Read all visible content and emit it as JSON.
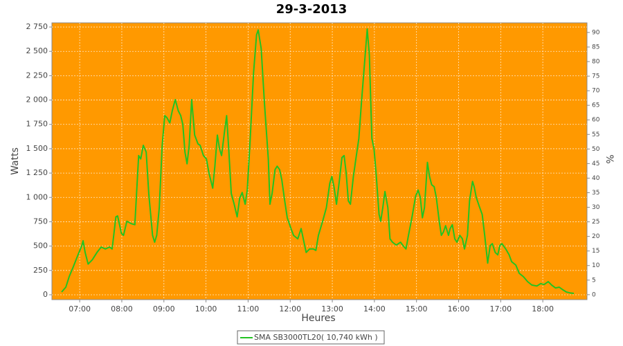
{
  "chart_data": {
    "type": "line",
    "title": "29-3-2013",
    "xlabel": "Heures",
    "ylabel": "Watts",
    "y2label": "%",
    "background": "#ff9900",
    "grid": true,
    "legend": "bottom",
    "x": [
      6.57,
      6.67,
      6.75,
      6.85,
      6.95,
      7.05,
      7.08,
      7.13,
      7.2,
      7.3,
      7.41,
      7.51,
      7.61,
      7.71,
      7.77,
      7.86,
      7.9,
      7.99,
      8.04,
      8.12,
      8.23,
      8.31,
      8.4,
      8.45,
      8.51,
      8.58,
      8.64,
      8.73,
      8.78,
      8.83,
      8.89,
      8.96,
      9.02,
      9.07,
      9.14,
      9.2,
      9.27,
      9.34,
      9.4,
      9.45,
      9.5,
      9.55,
      9.6,
      9.66,
      9.73,
      9.81,
      9.86,
      9.94,
      10.01,
      10.07,
      10.16,
      10.21,
      10.27,
      10.32,
      10.37,
      10.44,
      10.49,
      10.54,
      10.6,
      10.67,
      10.74,
      10.8,
      10.86,
      10.93,
      10.98,
      11.05,
      11.13,
      11.2,
      11.24,
      11.31,
      11.39,
      11.48,
      11.52,
      11.57,
      11.64,
      11.69,
      11.75,
      11.8,
      11.87,
      11.93,
      12.02,
      12.08,
      12.18,
      12.26,
      12.31,
      12.38,
      12.46,
      12.55,
      12.61,
      12.67,
      12.77,
      12.86,
      12.94,
      12.99,
      13.04,
      13.1,
      13.17,
      13.23,
      13.28,
      13.33,
      13.38,
      13.43,
      13.5,
      13.56,
      13.63,
      13.69,
      13.78,
      13.83,
      13.88,
      13.94,
      13.99,
      14.04,
      14.11,
      14.15,
      14.2,
      14.25,
      14.32,
      14.37,
      14.43,
      14.52,
      14.62,
      14.68,
      14.75,
      14.81,
      14.89,
      14.98,
      15.04,
      15.09,
      15.14,
      15.19,
      15.26,
      15.31,
      15.36,
      15.42,
      15.47,
      15.54,
      15.59,
      15.64,
      15.69,
      15.76,
      15.8,
      15.85,
      15.91,
      15.96,
      16.03,
      16.09,
      16.14,
      16.21,
      16.26,
      16.33,
      16.37,
      16.42,
      16.49,
      16.56,
      16.62,
      16.69,
      16.75,
      16.8,
      16.87,
      16.93,
      16.98,
      17.03,
      17.12,
      17.2,
      17.26,
      17.36,
      17.44,
      17.54,
      17.64,
      17.74,
      17.86,
      17.95,
      18.03,
      18.13,
      18.21,
      18.3,
      18.39,
      18.48,
      18.56,
      18.64,
      18.74
    ],
    "series": [
      {
        "name": "SMA SB3000TL20( 10,740 kWh )",
        "color": "#22c322",
        "values": [
          28,
          78,
          185,
          290,
          400,
          505,
          555,
          435,
          315,
          360,
          435,
          490,
          470,
          490,
          470,
          800,
          810,
          630,
          610,
          755,
          730,
          720,
          1430,
          1395,
          1535,
          1465,
          1040,
          610,
          540,
          610,
          895,
          1535,
          1840,
          1820,
          1765,
          1890,
          2005,
          1890,
          1840,
          1750,
          1465,
          1345,
          1535,
          2005,
          1640,
          1550,
          1535,
          1430,
          1395,
          1250,
          1095,
          1320,
          1640,
          1500,
          1430,
          1680,
          1840,
          1500,
          1040,
          930,
          800,
          990,
          1050,
          930,
          1075,
          1605,
          2280,
          2670,
          2720,
          2530,
          1960,
          1395,
          930,
          1040,
          1285,
          1320,
          1285,
          1180,
          965,
          790,
          680,
          610,
          575,
          680,
          575,
          435,
          470,
          470,
          455,
          610,
          755,
          895,
          1145,
          1215,
          1110,
          930,
          1180,
          1410,
          1430,
          1250,
          965,
          930,
          1215,
          1395,
          1605,
          1960,
          2460,
          2730,
          2460,
          1605,
          1500,
          1250,
          825,
          755,
          895,
          1060,
          895,
          575,
          540,
          510,
          540,
          505,
          470,
          610,
          790,
          1015,
          1075,
          1000,
          790,
          895,
          1360,
          1215,
          1130,
          1110,
          1000,
          755,
          610,
          645,
          710,
          610,
          680,
          720,
          575,
          540,
          610,
          575,
          470,
          610,
          965,
          1165,
          1110,
          1000,
          910,
          825,
          610,
          325,
          505,
          525,
          435,
          410,
          505,
          525,
          470,
          410,
          340,
          305,
          220,
          185,
          135,
          100,
          90,
          115,
          105,
          135,
          100,
          70,
          78,
          50,
          28,
          20,
          14
        ]
      }
    ],
    "xlim": [
      6.34,
      19.05
    ],
    "xticks": [
      {
        "value": 7,
        "label": "07:00"
      },
      {
        "value": 8,
        "label": "08:00"
      },
      {
        "value": 9,
        "label": "09:00"
      },
      {
        "value": 10,
        "label": "10:00"
      },
      {
        "value": 11,
        "label": "11:00"
      },
      {
        "value": 12,
        "label": "12:00"
      },
      {
        "value": 13,
        "label": "13:00"
      },
      {
        "value": 14,
        "label": "14:00"
      },
      {
        "value": 15,
        "label": "15:00"
      },
      {
        "value": 16,
        "label": "16:00"
      },
      {
        "value": 17,
        "label": "17:00"
      },
      {
        "value": 18,
        "label": "18:00"
      }
    ],
    "ylim": [
      -50,
      2793
    ],
    "yticks": [
      0,
      250,
      500,
      750,
      {
        "value": 1000,
        "label": "1 000"
      },
      {
        "value": 1250,
        "label": "1 250"
      },
      {
        "value": 1500,
        "label": "1 500"
      },
      {
        "value": 1750,
        "label": "1 750"
      },
      {
        "value": 2000,
        "label": "2 000"
      },
      {
        "value": 2250,
        "label": "2 250"
      },
      {
        "value": 2500,
        "label": "2 500"
      },
      {
        "value": 2750,
        "label": "2 750"
      }
    ],
    "y2lim": [
      -1.7,
      93.3
    ],
    "y2ticks": [
      0,
      5,
      10,
      15,
      20,
      25,
      30,
      35,
      40,
      45,
      50,
      55,
      60,
      65,
      70,
      75,
      80,
      85,
      90
    ]
  }
}
